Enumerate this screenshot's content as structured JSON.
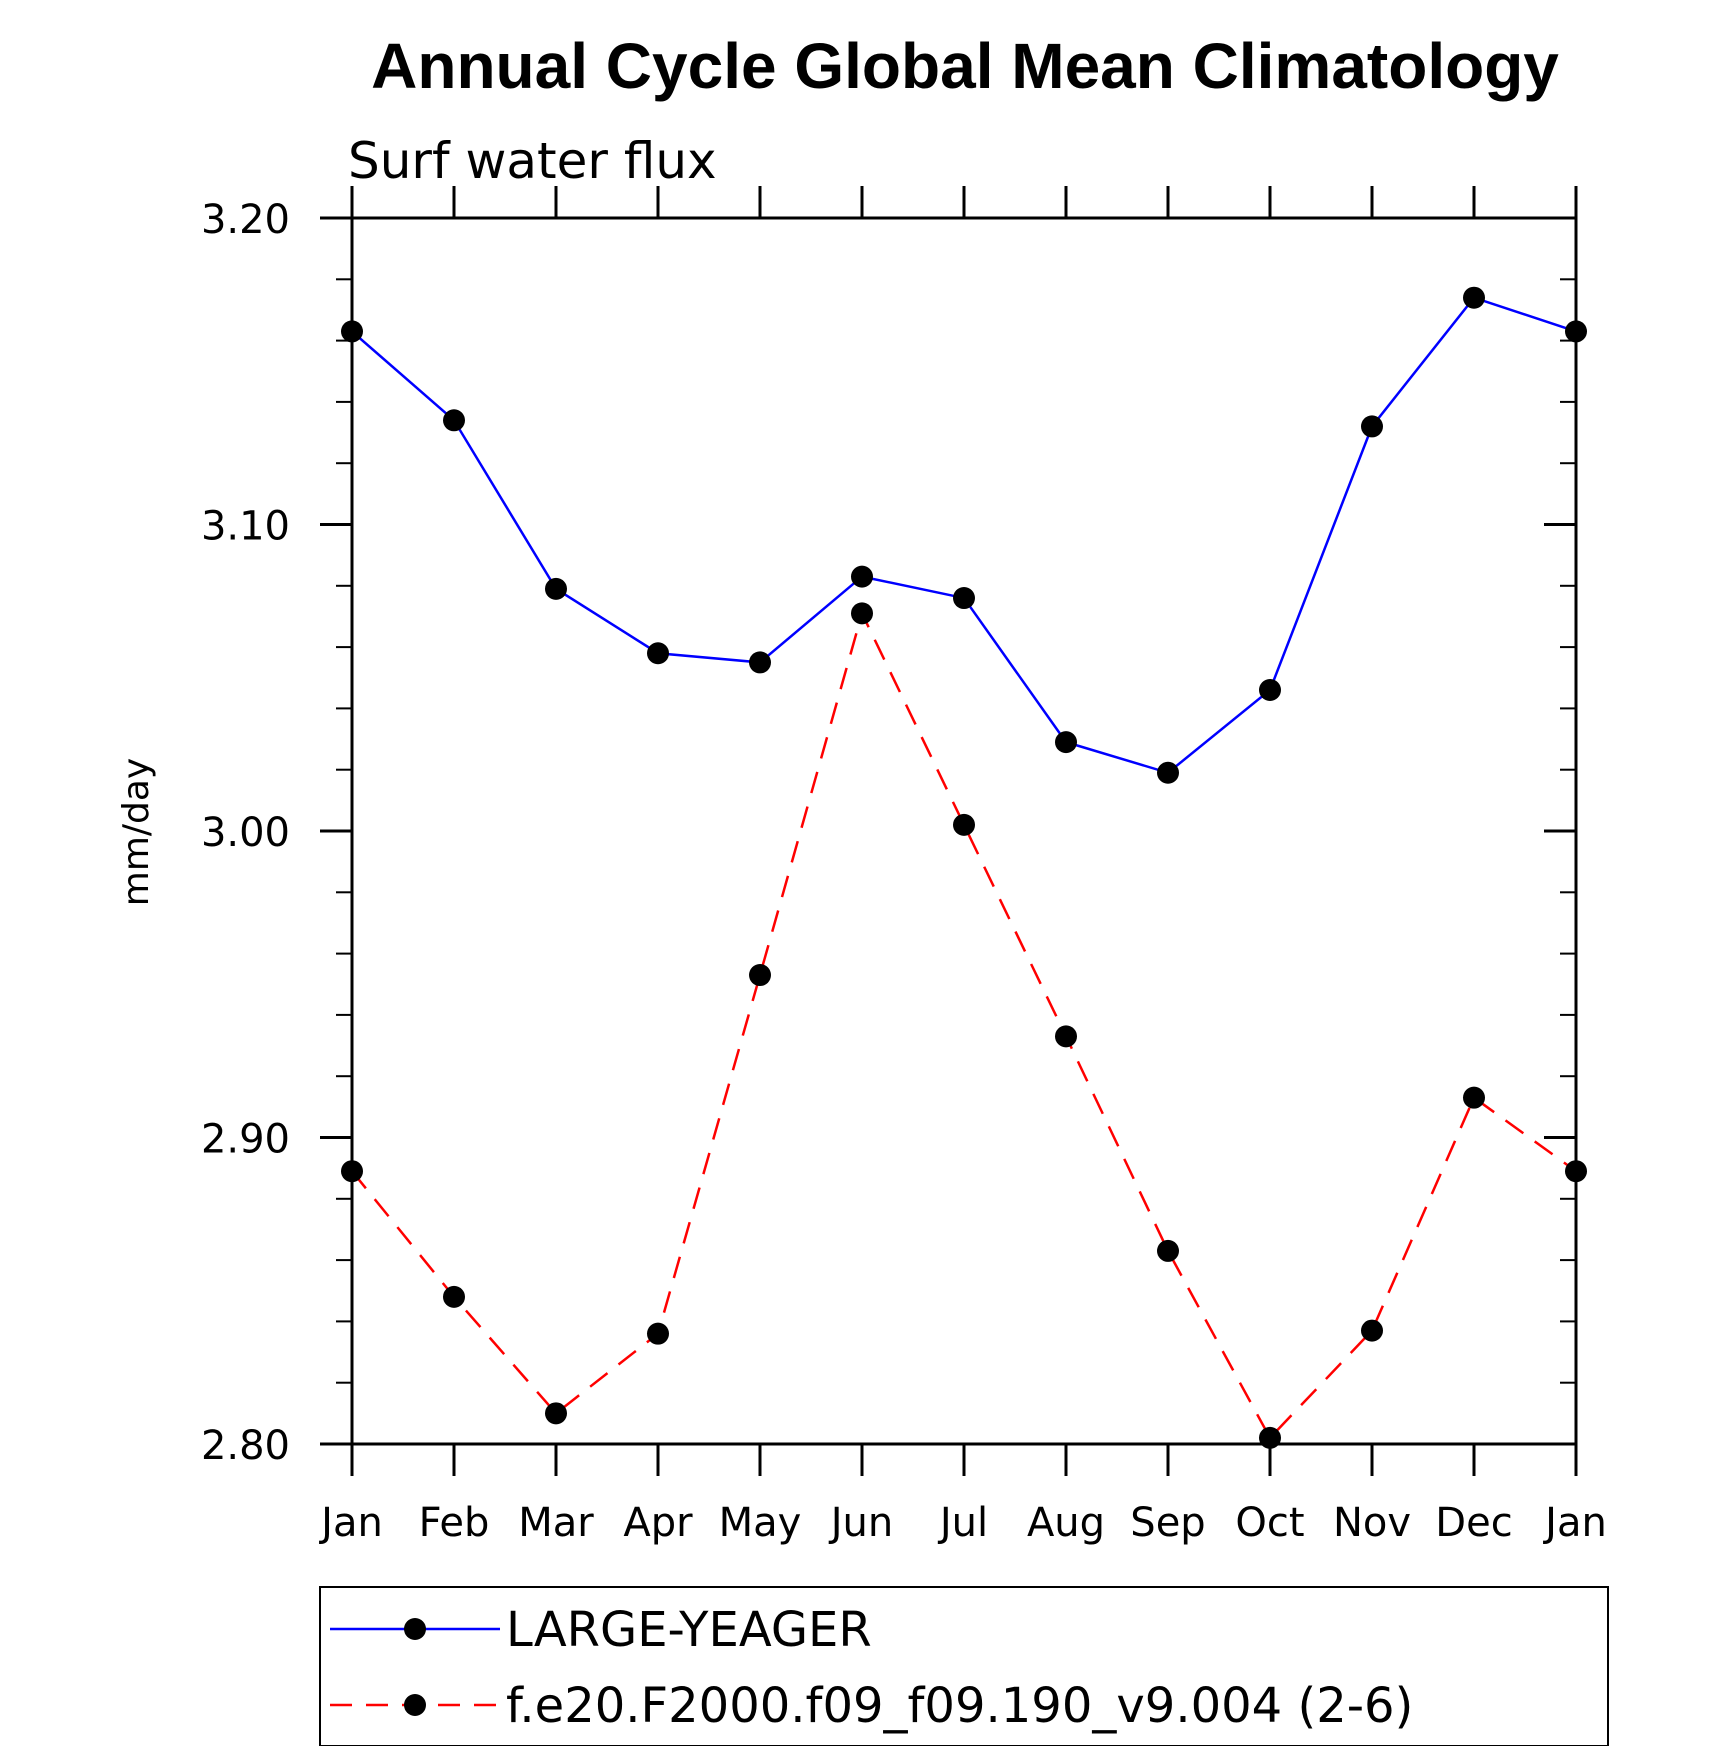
{
  "chart_data": {
    "type": "line",
    "title": "Annual Cycle Global Mean Climatology",
    "subtitle": "Surf water flux",
    "ylabel": "mm/day",
    "xlabel": "",
    "categories": [
      "Jan",
      "Feb",
      "Mar",
      "Apr",
      "May",
      "Jun",
      "Jul",
      "Aug",
      "Sep",
      "Oct",
      "Nov",
      "Dec",
      "Jan"
    ],
    "ylim": [
      2.8,
      3.2
    ],
    "yticks": [
      "2.80",
      "2.90",
      "3.00",
      "3.10",
      "3.20"
    ],
    "y_minor_step": 0.02,
    "grid": false,
    "legend_position": "bottom",
    "series": [
      {
        "name": "LARGE-YEAGER",
        "color": "#0000ff",
        "dash": "solid",
        "marker": "filled-circle",
        "values": [
          3.163,
          3.134,
          3.079,
          3.058,
          3.055,
          3.083,
          3.076,
          3.029,
          3.019,
          3.046,
          3.132,
          3.174,
          3.163
        ]
      },
      {
        "name": "f.e20.F2000.f09_f09.190_v9.004 (2-6)",
        "color": "#ff0000",
        "dash": "dashed",
        "marker": "filled-circle",
        "values": [
          2.889,
          2.848,
          2.81,
          2.836,
          2.953,
          3.071,
          3.002,
          2.933,
          2.863,
          2.802,
          2.837,
          2.913,
          2.889
        ]
      }
    ]
  }
}
